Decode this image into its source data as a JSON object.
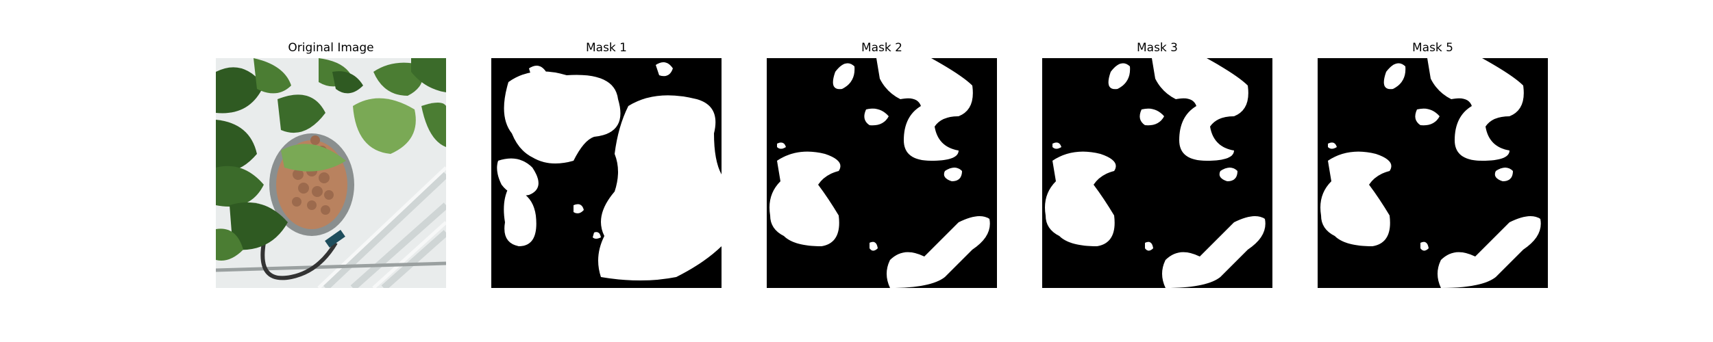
{
  "figure": {
    "panels": [
      {
        "title": "Original Image",
        "kind": "photo"
      },
      {
        "title": "Mask 1",
        "kind": "mask"
      },
      {
        "title": "Mask 2",
        "kind": "mask"
      },
      {
        "title": "Mask 3",
        "kind": "mask"
      },
      {
        "title": "Mask 5",
        "kind": "mask"
      }
    ]
  },
  "colors": {
    "mask_background": "#000000",
    "mask_foreground": "#ffffff",
    "leaf_dark": "#2f5a22",
    "leaf_mid": "#4b7d33",
    "leaf_light": "#7aa955",
    "tray": "#e9ecec",
    "pebbles": "#b9825f"
  }
}
